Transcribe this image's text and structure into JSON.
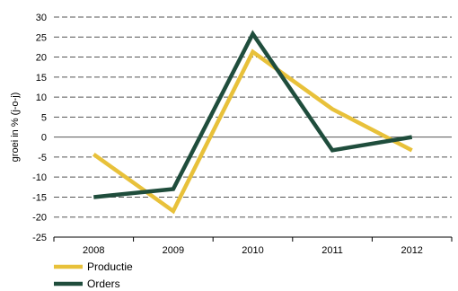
{
  "chart_data": {
    "type": "line",
    "title": "",
    "xlabel": "",
    "ylabel": "groei in % (j-o-j)",
    "x": [
      "2008",
      "2009",
      "2010",
      "2011",
      "2012"
    ],
    "ylim": [
      -25,
      30
    ],
    "yticks": [
      30,
      25,
      20,
      15,
      10,
      5,
      0,
      -5,
      -10,
      -15,
      -20,
      -25
    ],
    "grid": true,
    "grid_style": "dashed",
    "legend_position": "bottom-left",
    "series": [
      {
        "name": "Productie",
        "color": "#e8c13a",
        "values": [
          -4.3,
          -18.5,
          21.3,
          7.0,
          -3.3
        ]
      },
      {
        "name": "Orders",
        "color": "#1f4d3c",
        "values": [
          -15.0,
          -13.0,
          25.8,
          -3.3,
          0.0
        ]
      }
    ]
  }
}
